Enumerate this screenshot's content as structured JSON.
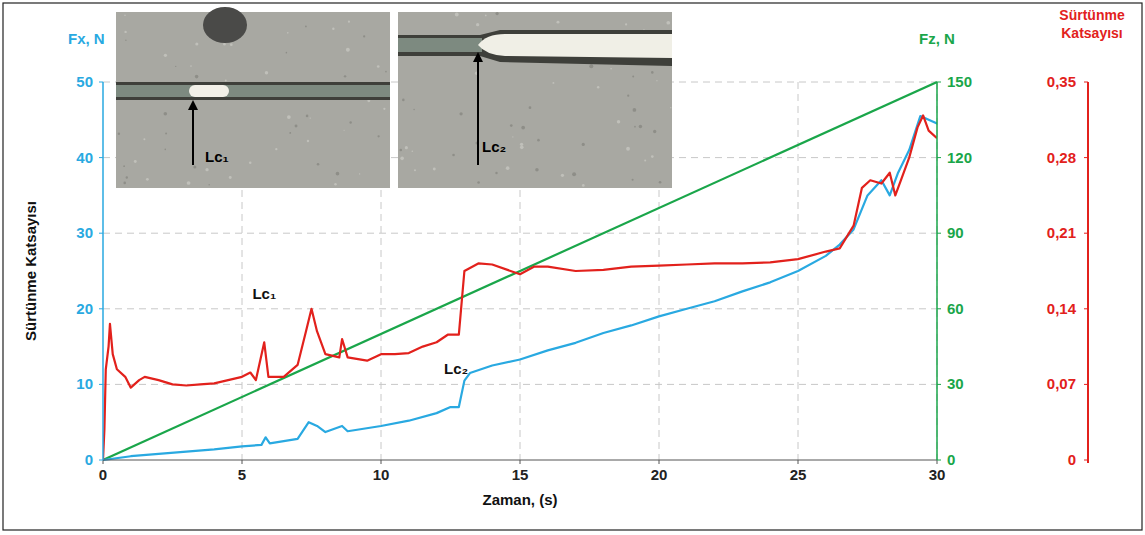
{
  "chart_data": {
    "type": "line",
    "xlabel": "Zaman, (s)",
    "ylabel": "Fx, N",
    "y2label": "Fz, N",
    "y3label": "Sürtünme Katsayısı",
    "ylabel_vertical": "Sürtünme Katsayısı",
    "xlim": [
      0,
      30
    ],
    "xticks": [
      0,
      5,
      10,
      15,
      20,
      25,
      30
    ],
    "ylim": [
      0,
      50
    ],
    "yticks": [
      0,
      10,
      20,
      30,
      40,
      50
    ],
    "y2lim": [
      0,
      150
    ],
    "y2ticks": [
      0,
      30,
      60,
      90,
      120,
      150
    ],
    "y3lim": [
      0,
      0.35
    ],
    "y3ticks": [
      0,
      {
        "value": 0.07,
        "label": "0,07"
      },
      {
        "value": 0.14,
        "label": "0,14"
      },
      {
        "value": 0.21,
        "label": "0,21"
      },
      {
        "value": 0.28,
        "label": "0,28"
      },
      {
        "value": 0.35,
        "label": "0,35"
      }
    ],
    "grid": true,
    "series": [
      {
        "color": "#29a9e1",
        "axis": "y",
        "x": [
          0,
          1,
          2,
          3,
          4,
          5,
          5.7,
          5.85,
          6,
          7,
          7.4,
          7.7,
          8,
          8.6,
          8.8,
          10,
          11,
          12,
          12.5,
          12.8,
          13,
          13.2,
          14,
          15,
          16,
          17,
          18,
          19,
          20,
          21,
          22,
          23,
          24,
          25,
          26,
          26.5,
          27,
          27.5,
          28,
          28.3,
          28.6,
          29,
          29.4,
          29.7,
          30
        ],
        "values": [
          0,
          0.5,
          0.8,
          1.1,
          1.4,
          1.8,
          2,
          3,
          2.2,
          2.8,
          5,
          4.5,
          3.7,
          4.5,
          3.8,
          4.5,
          5.2,
          6.2,
          7,
          7,
          10.5,
          11.5,
          12.5,
          13.3,
          14.5,
          15.5,
          16.8,
          17.8,
          19,
          20,
          21,
          22.3,
          23.5,
          25,
          27,
          28.5,
          30.5,
          35,
          37,
          35,
          38,
          41,
          45.5,
          45,
          44.5
        ]
      },
      {
        "color": "#1aa64a",
        "axis": "y2",
        "x": [
          0,
          30
        ],
        "values": [
          0,
          150
        ]
      },
      {
        "color": "#e2211c",
        "axis": "y3",
        "x": [
          0,
          0.05,
          0.1,
          0.2,
          0.25,
          0.35,
          0.5,
          0.8,
          1.0,
          1.3,
          1.5,
          2,
          2.5,
          3,
          3.5,
          4,
          4.5,
          5,
          5.3,
          5.5,
          5.8,
          5.95,
          6.5,
          7,
          7.3,
          7.5,
          7.7,
          8,
          8.5,
          8.6,
          8.8,
          9.5,
          10,
          10.5,
          11,
          11.5,
          12,
          12.4,
          12.8,
          13,
          13.5,
          14,
          15,
          15.5,
          16,
          17,
          18,
          19,
          20,
          21,
          22,
          23,
          24,
          25,
          26,
          26.5,
          27,
          27.3,
          27.6,
          28,
          28.3,
          28.5,
          28.7,
          29,
          29.3,
          29.5,
          29.7,
          30
        ],
        "values": [
          0,
          0.028,
          0.084,
          0.105,
          0.126,
          0.098,
          0.084,
          0.077,
          0.067,
          0.074,
          0.077,
          0.074,
          0.07,
          0.069,
          0.07,
          0.071,
          0.074,
          0.077,
          0.081,
          0.074,
          0.109,
          0.077,
          0.077,
          0.088,
          0.119,
          0.14,
          0.119,
          0.098,
          0.095,
          0.112,
          0.095,
          0.092,
          0.098,
          0.098,
          0.099,
          0.105,
          0.109,
          0.116,
          0.116,
          0.175,
          0.182,
          0.181,
          0.172,
          0.179,
          0.179,
          0.175,
          0.176,
          0.179,
          0.18,
          0.181,
          0.182,
          0.182,
          0.183,
          0.186,
          0.193,
          0.196,
          0.217,
          0.252,
          0.259,
          0.256,
          0.266,
          0.245,
          0.259,
          0.28,
          0.308,
          0.319,
          0.305,
          0.298
        ]
      }
    ],
    "annotations": [
      {
        "text": "Lc₁",
        "x": 5.8,
        "y": 0.154,
        "axis": "y3"
      },
      {
        "text": "Lc₂",
        "x": 12.7,
        "y": 0.084,
        "axis": "y3"
      }
    ],
    "insets": [
      {
        "label": "Lc₁"
      },
      {
        "label": "Lc₂"
      }
    ]
  }
}
